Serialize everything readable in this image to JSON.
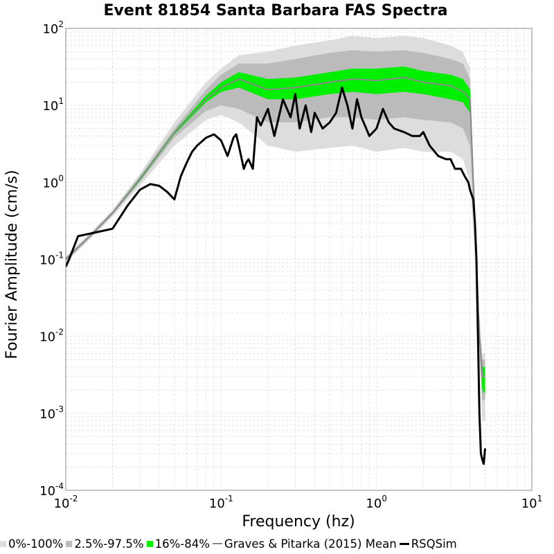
{
  "chart_data": {
    "type": "area",
    "title": "Event 81854 Santa Barbara FAS Spectra",
    "xlabel": "Frequency (hz)",
    "ylabel": "Fourier Amplitude (cm/s)",
    "x_scale": "log",
    "y_scale": "log",
    "xlim": [
      0.01,
      10
    ],
    "ylim": [
      0.0001,
      100
    ],
    "grid": true,
    "legend_position": "bottom",
    "x_ticks": [
      {
        "base": "10",
        "exp": "-2",
        "value": 0.01
      },
      {
        "base": "10",
        "exp": "-1",
        "value": 0.1
      },
      {
        "base": "10",
        "exp": "0",
        "value": 1
      },
      {
        "base": "10",
        "exp": "1",
        "value": 10
      }
    ],
    "y_ticks": [
      {
        "base": "10",
        "exp": "2",
        "value": 100
      },
      {
        "base": "10",
        "exp": "1",
        "value": 10
      },
      {
        "base": "10",
        "exp": "0",
        "value": 1
      },
      {
        "base": "10",
        "exp": "-1",
        "value": 0.1
      },
      {
        "base": "10",
        "exp": "-2",
        "value": 0.01
      },
      {
        "base": "10",
        "exp": "-3",
        "value": 0.001
      },
      {
        "base": "10",
        "exp": "-4",
        "value": 0.0001
      }
    ],
    "colors": {
      "band_0_100": "#dddddd",
      "band_2_5_97_5": "#bbbbbb",
      "band_16_84": "#00ee00",
      "mean": "#888888",
      "rsqsim": "#000000",
      "grid": "#e2e2e2"
    },
    "series": [
      {
        "name": "0%-100%",
        "kind": "band",
        "x": [
          0.01,
          0.015,
          0.02,
          0.03,
          0.05,
          0.08,
          0.1,
          0.13,
          0.2,
          0.3,
          0.5,
          0.7,
          1.0,
          1.5,
          2.0,
          3.0,
          3.6,
          4.0,
          4.3,
          4.6,
          4.8,
          5.0
        ],
        "lower": [
          0.09,
          0.2,
          0.36,
          0.9,
          3.0,
          6.5,
          7.5,
          6.0,
          3.0,
          2.5,
          2.8,
          3.0,
          2.5,
          2.8,
          2.5,
          2.5,
          2.0,
          1.0,
          0.1,
          0.005,
          0.0008,
          0.0008
        ],
        "upper": [
          0.11,
          0.24,
          0.44,
          1.3,
          6.0,
          20,
          30,
          45,
          50,
          60,
          70,
          80,
          75,
          80,
          75,
          60,
          50,
          30,
          0.5,
          0.02,
          0.006,
          0.006
        ]
      },
      {
        "name": "2.5%-97.5%",
        "kind": "band",
        "x": [
          0.01,
          0.015,
          0.02,
          0.03,
          0.05,
          0.08,
          0.1,
          0.13,
          0.2,
          0.3,
          0.5,
          0.7,
          1.0,
          1.5,
          2.0,
          3.0,
          3.6,
          4.0,
          4.3,
          4.6,
          4.8,
          5.0
        ],
        "lower": [
          0.095,
          0.21,
          0.38,
          1.0,
          3.8,
          8.5,
          10,
          9,
          6,
          6,
          7,
          7,
          6.5,
          7,
          6.5,
          6,
          5,
          3,
          0.25,
          0.008,
          0.0015,
          0.0015
        ],
        "upper": [
          0.105,
          0.23,
          0.42,
          1.2,
          5.0,
          16,
          25,
          35,
          35,
          40,
          48,
          52,
          50,
          52,
          48,
          40,
          35,
          22,
          0.4,
          0.012,
          0.005,
          0.005
        ]
      },
      {
        "name": "16%-84%",
        "kind": "band",
        "x": [
          0.01,
          0.015,
          0.02,
          0.03,
          0.05,
          0.08,
          0.1,
          0.13,
          0.2,
          0.3,
          0.5,
          0.7,
          1.0,
          1.5,
          2.0,
          3.0,
          3.6,
          4.0,
          4.3,
          4.6,
          4.8,
          5.0
        ],
        "lower": [
          0.098,
          0.215,
          0.39,
          1.05,
          4.2,
          11,
          15,
          17,
          12,
          12,
          14,
          15,
          14,
          15,
          14,
          12,
          11,
          8,
          0.28,
          0.009,
          0.002,
          0.0018
        ],
        "upper": [
          0.102,
          0.225,
          0.41,
          1.15,
          4.6,
          13.5,
          20,
          27,
          22,
          23,
          27,
          30,
          30,
          32,
          28,
          25,
          22,
          16,
          0.36,
          0.011,
          0.004,
          0.004
        ]
      },
      {
        "name": "Graves & Pitarka (2015) Mean",
        "kind": "line",
        "x": [
          0.01,
          0.015,
          0.02,
          0.03,
          0.05,
          0.08,
          0.1,
          0.13,
          0.2,
          0.3,
          0.5,
          0.7,
          1.0,
          1.5,
          2.0,
          3.0,
          3.6,
          4.0,
          4.3,
          4.6,
          4.8,
          5.0
        ],
        "y": [
          0.1,
          0.22,
          0.4,
          1.1,
          4.4,
          12,
          17,
          22,
          16,
          17,
          20,
          22,
          21,
          23,
          20,
          18,
          15,
          12,
          0.3,
          0.01,
          0.003,
          0.003
        ]
      },
      {
        "name": "RSQSim",
        "kind": "line",
        "x": [
          0.01,
          0.0105,
          0.012,
          0.015,
          0.02,
          0.025,
          0.03,
          0.035,
          0.04,
          0.045,
          0.05,
          0.055,
          0.06,
          0.065,
          0.07,
          0.08,
          0.09,
          0.1,
          0.11,
          0.12,
          0.125,
          0.13,
          0.14,
          0.145,
          0.15,
          0.16,
          0.17,
          0.18,
          0.2,
          0.22,
          0.25,
          0.28,
          0.3,
          0.32,
          0.35,
          0.38,
          0.4,
          0.45,
          0.5,
          0.55,
          0.6,
          0.65,
          0.7,
          0.75,
          0.8,
          0.9,
          1.0,
          1.1,
          1.2,
          1.3,
          1.5,
          1.7,
          1.9,
          2.0,
          2.2,
          2.5,
          2.8,
          3.0,
          3.2,
          3.5,
          3.7,
          3.9,
          4.0,
          4.2,
          4.3,
          4.4,
          4.5,
          4.6,
          4.7,
          4.8,
          4.9,
          5.0
        ],
        "y": [
          0.08,
          0.1,
          0.2,
          0.22,
          0.25,
          0.5,
          0.8,
          0.95,
          0.9,
          0.75,
          0.6,
          1.2,
          1.8,
          2.5,
          3.0,
          3.8,
          4.2,
          3.5,
          2.2,
          3.8,
          4.2,
          3.0,
          1.5,
          1.8,
          2.0,
          1.5,
          7.0,
          5.5,
          9.0,
          4.0,
          12.0,
          7.0,
          14.0,
          5.0,
          10.0,
          4.5,
          8.0,
          5.0,
          6.0,
          8.0,
          17.0,
          10.0,
          5.0,
          12.0,
          7.0,
          4.0,
          5.0,
          9.0,
          6.0,
          5.0,
          4.5,
          4.0,
          4.0,
          4.5,
          3.0,
          2.2,
          2.0,
          2.0,
          1.5,
          1.5,
          1.2,
          1.0,
          0.8,
          0.6,
          0.3,
          0.1,
          0.01,
          0.001,
          0.0003,
          0.00025,
          0.00022,
          0.00035
        ]
      }
    ]
  }
}
